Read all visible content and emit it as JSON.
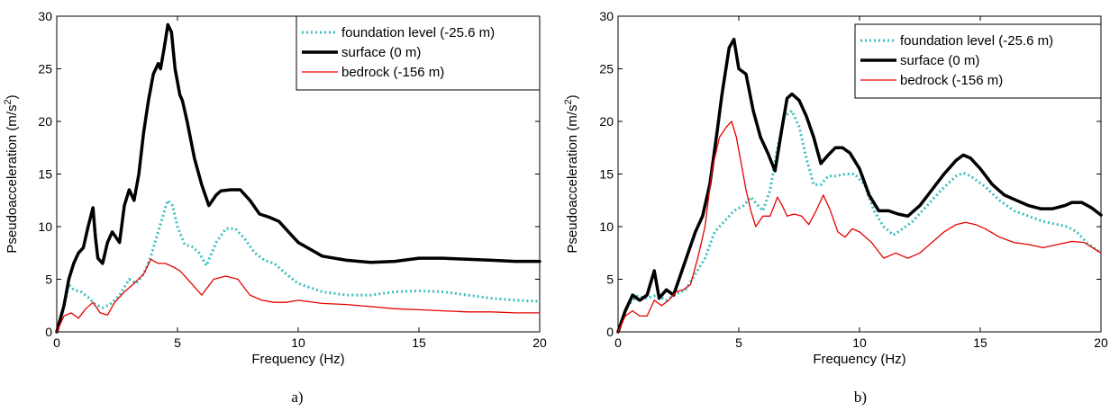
{
  "chart_data": [
    {
      "type": "line",
      "caption": "a)",
      "xlabel": "Frequency (Hz)",
      "ylabel": "Pseudoacceleration (m/s",
      "ylabel_sup": "2",
      "ylabel_end": ")",
      "xlim": [
        0,
        20
      ],
      "ylim": [
        0,
        30
      ],
      "xticks": [
        0,
        5,
        10,
        15,
        20
      ],
      "yticks": [
        0,
        5,
        10,
        15,
        20,
        25,
        30
      ],
      "grid": false,
      "legend_position": "top-right",
      "series": [
        {
          "name": "foundation level (-25.6 m)",
          "color": "#3cbfbf",
          "style": "dotted",
          "x": [
            0,
            0.2,
            0.5,
            0.7,
            1.0,
            1.3,
            1.6,
            1.9,
            2.2,
            2.6,
            3.0,
            3.3,
            3.6,
            3.9,
            4.2,
            4.5,
            4.6,
            4.8,
            5.0,
            5.3,
            5.6,
            5.9,
            6.2,
            6.6,
            7.0,
            7.4,
            7.8,
            8.2,
            8.6,
            9.0,
            9.5,
            10,
            11,
            12,
            13,
            14,
            15,
            16,
            17,
            18,
            19,
            20
          ],
          "y": [
            0,
            1.5,
            4.5,
            4.0,
            3.8,
            3.3,
            2.6,
            2.3,
            2.6,
            3.5,
            5.0,
            4.6,
            5.5,
            7.2,
            9.5,
            11.8,
            12.5,
            12.0,
            10.0,
            8.3,
            8.1,
            7.5,
            6.3,
            8.5,
            9.8,
            9.8,
            8.8,
            7.5,
            6.8,
            6.5,
            5.5,
            4.6,
            3.8,
            3.5,
            3.5,
            3.8,
            3.9,
            3.8,
            3.5,
            3.2,
            3.0,
            2.9
          ]
        },
        {
          "name": "surface (0 m)",
          "color": "#000000",
          "style": "solid-thick",
          "x": [
            0,
            0.3,
            0.5,
            0.7,
            0.9,
            1.1,
            1.3,
            1.5,
            1.6,
            1.7,
            1.9,
            2.1,
            2.3,
            2.6,
            2.8,
            3.0,
            3.2,
            3.4,
            3.6,
            3.8,
            4.0,
            4.2,
            4.3,
            4.45,
            4.6,
            4.75,
            4.9,
            5.1,
            5.2,
            5.4,
            5.7,
            6.0,
            6.3,
            6.6,
            6.8,
            7.2,
            7.6,
            8.0,
            8.4,
            8.8,
            9.2,
            9.6,
            10,
            11,
            12,
            13,
            14,
            15,
            16,
            17,
            18,
            19,
            20
          ],
          "y": [
            0,
            2.5,
            5.0,
            6.5,
            7.5,
            8.0,
            10.0,
            11.8,
            9.0,
            7.0,
            6.5,
            8.5,
            9.5,
            8.5,
            12.0,
            13.5,
            12.5,
            15.0,
            19.0,
            22.0,
            24.5,
            25.5,
            25.0,
            27.0,
            29.2,
            28.5,
            25.0,
            22.5,
            22.0,
            20.0,
            16.5,
            14.0,
            12.0,
            13.0,
            13.4,
            13.5,
            13.5,
            12.5,
            11.2,
            10.9,
            10.5,
            9.5,
            8.5,
            7.2,
            6.8,
            6.6,
            6.7,
            7.0,
            7.0,
            6.9,
            6.8,
            6.7,
            6.7
          ]
        },
        {
          "name": "bedrock (-156 m)",
          "color": "#e60000",
          "style": "solid-thin",
          "x": [
            0,
            0.3,
            0.6,
            0.9,
            1.2,
            1.5,
            1.8,
            2.1,
            2.4,
            2.8,
            3.2,
            3.6,
            3.9,
            4.2,
            4.5,
            4.8,
            5.1,
            5.5,
            6.0,
            6.5,
            7.0,
            7.5,
            8.0,
            8.5,
            9.0,
            9.5,
            10,
            11,
            12,
            13,
            14,
            15,
            16,
            17,
            18,
            19,
            20
          ],
          "y": [
            0,
            1.5,
            1.8,
            1.3,
            2.2,
            2.8,
            1.8,
            1.6,
            2.8,
            3.8,
            4.6,
            5.5,
            6.9,
            6.5,
            6.5,
            6.2,
            5.8,
            4.8,
            3.5,
            5.0,
            5.3,
            5.0,
            3.5,
            3.0,
            2.8,
            2.8,
            3.0,
            2.7,
            2.6,
            2.4,
            2.2,
            2.1,
            2.0,
            1.9,
            1.9,
            1.8,
            1.8
          ]
        }
      ]
    },
    {
      "type": "line",
      "caption": "b)",
      "xlabel": "Frequency (Hz)",
      "ylabel": "Pseudoacceleration (m/s",
      "ylabel_sup": "2",
      "ylabel_end": ")",
      "xlim": [
        0,
        20
      ],
      "ylim": [
        0,
        30
      ],
      "xticks": [
        0,
        5,
        10,
        15,
        20
      ],
      "yticks": [
        0,
        5,
        10,
        15,
        20,
        25,
        30
      ],
      "grid": false,
      "legend_position": "top-right",
      "series": [
        {
          "name": "foundation level (-25.6 m)",
          "color": "#3cbfbf",
          "style": "dotted",
          "x": [
            0,
            0.4,
            0.8,
            1.2,
            1.6,
            2.0,
            2.4,
            2.8,
            3.2,
            3.6,
            4.0,
            4.4,
            4.8,
            5.2,
            5.5,
            5.8,
            6.0,
            6.3,
            6.6,
            6.9,
            7.2,
            7.5,
            7.8,
            8.1,
            8.4,
            8.7,
            9.0,
            9.4,
            9.8,
            10.2,
            10.6,
            11.0,
            11.4,
            11.8,
            12.2,
            12.8,
            13.4,
            14.0,
            14.3,
            14.6,
            15.2,
            15.8,
            16.4,
            17.0,
            17.6,
            18.2,
            18.6,
            19.0,
            19.4,
            20
          ],
          "y": [
            0,
            2.5,
            3.4,
            3.2,
            3.5,
            3.0,
            3.6,
            4.0,
            5.5,
            7.0,
            9.5,
            10.5,
            11.5,
            12.0,
            12.8,
            12.0,
            11.5,
            13.5,
            17.5,
            20.5,
            21.0,
            19.5,
            16.5,
            14.0,
            14.0,
            14.8,
            14.8,
            15.0,
            15.0,
            14.0,
            11.5,
            10.0,
            9.2,
            9.8,
            10.5,
            12.0,
            13.5,
            14.8,
            15.1,
            14.8,
            13.8,
            12.5,
            11.5,
            11.0,
            10.5,
            10.2,
            10.0,
            9.5,
            8.5,
            7.5
          ]
        },
        {
          "name": "surface (0 m)",
          "color": "#000000",
          "style": "solid-thick",
          "x": [
            0,
            0.3,
            0.6,
            0.9,
            1.2,
            1.5,
            1.7,
            2.0,
            2.3,
            2.6,
            2.9,
            3.2,
            3.5,
            3.8,
            4.1,
            4.3,
            4.6,
            4.8,
            5.0,
            5.3,
            5.6,
            5.9,
            6.2,
            6.5,
            6.8,
            7.0,
            7.2,
            7.5,
            7.8,
            8.1,
            8.4,
            8.7,
            9.0,
            9.3,
            9.6,
            10.0,
            10.4,
            10.8,
            11.2,
            11.6,
            12.0,
            12.5,
            13.0,
            13.5,
            14.0,
            14.3,
            14.6,
            15.0,
            15.5,
            16.0,
            16.5,
            17.0,
            17.5,
            18.0,
            18.5,
            18.8,
            19.2,
            19.6,
            20
          ],
          "y": [
            0,
            2.0,
            3.5,
            3.0,
            3.5,
            5.8,
            3.2,
            4.0,
            3.5,
            5.5,
            7.5,
            9.5,
            11.0,
            14.0,
            19.0,
            22.5,
            27.0,
            27.8,
            25.0,
            24.5,
            21.0,
            18.5,
            17.0,
            15.3,
            19.5,
            22.2,
            22.6,
            22.0,
            20.5,
            18.5,
            16.0,
            16.8,
            17.5,
            17.5,
            17.0,
            15.5,
            13.0,
            11.5,
            11.5,
            11.2,
            11.0,
            12.0,
            13.5,
            15.0,
            16.3,
            16.8,
            16.5,
            15.5,
            14.0,
            13.0,
            12.5,
            12.0,
            11.7,
            11.7,
            12.0,
            12.3,
            12.3,
            11.8,
            11.1
          ]
        },
        {
          "name": "bedrock (-156 m)",
          "color": "#e60000",
          "style": "solid-thin",
          "x": [
            0,
            0.3,
            0.6,
            0.9,
            1.2,
            1.5,
            1.8,
            2.1,
            2.4,
            2.7,
            3.0,
            3.3,
            3.6,
            3.9,
            4.2,
            4.5,
            4.7,
            4.9,
            5.1,
            5.3,
            5.5,
            5.7,
            6.0,
            6.3,
            6.6,
            6.8,
            7.0,
            7.3,
            7.6,
            7.9,
            8.2,
            8.5,
            8.8,
            9.1,
            9.4,
            9.7,
            10.0,
            10.5,
            11.0,
            11.5,
            12.0,
            12.5,
            13.0,
            13.5,
            14.0,
            14.4,
            14.8,
            15.2,
            15.8,
            16.4,
            17.0,
            17.6,
            18.2,
            18.8,
            19.3,
            20
          ],
          "y": [
            0,
            1.5,
            2.0,
            1.5,
            1.5,
            3.0,
            2.5,
            3.0,
            3.8,
            4.0,
            4.5,
            7.0,
            10.0,
            15.5,
            18.5,
            19.5,
            20.0,
            18.5,
            16.0,
            13.5,
            11.5,
            10.0,
            11.0,
            11.0,
            12.8,
            12.0,
            11.0,
            11.2,
            11.0,
            10.2,
            11.5,
            13.0,
            11.5,
            9.5,
            9.0,
            9.8,
            9.5,
            8.5,
            7.0,
            7.5,
            7.0,
            7.5,
            8.5,
            9.5,
            10.2,
            10.4,
            10.2,
            9.8,
            9.0,
            8.5,
            8.3,
            8.0,
            8.3,
            8.6,
            8.5,
            7.5
          ]
        }
      ]
    }
  ]
}
